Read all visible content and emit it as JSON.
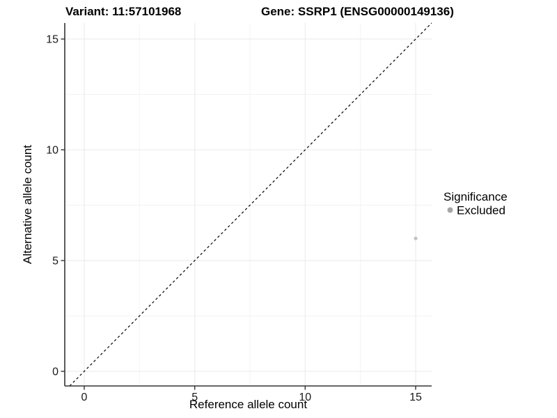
{
  "figure": {
    "background": "#ffffff"
  },
  "chart_data": {
    "type": "scatter",
    "title_left": "Variant: 11:57101968",
    "title_right": "Gene: SSRP1 (ENSG00000149136)",
    "xlabel": "Reference allele count",
    "ylabel": "Alternative allele count",
    "x_ticks": [
      "0",
      "5",
      "10",
      "15"
    ],
    "y_ticks": [
      "0",
      "5",
      "10",
      "15"
    ],
    "x_tick_values": [
      0,
      5,
      10,
      15
    ],
    "y_tick_values": [
      0,
      5,
      10,
      15
    ],
    "xlim": [
      -0.9,
      15.7
    ],
    "ylim": [
      -0.7,
      15.7
    ],
    "grid": "major and minor, very light gray",
    "identity_line": {
      "equation": "y = x",
      "style": "dashed",
      "color": "#000000"
    },
    "legend": {
      "position": "right",
      "title": "Significance",
      "entries": [
        {
          "label": "Excluded",
          "color": "#a6a6a6"
        }
      ]
    },
    "series": [
      {
        "name": "Excluded",
        "color": "#c2c2c2",
        "points": [
          {
            "x": 15,
            "y": 6
          }
        ]
      }
    ]
  }
}
